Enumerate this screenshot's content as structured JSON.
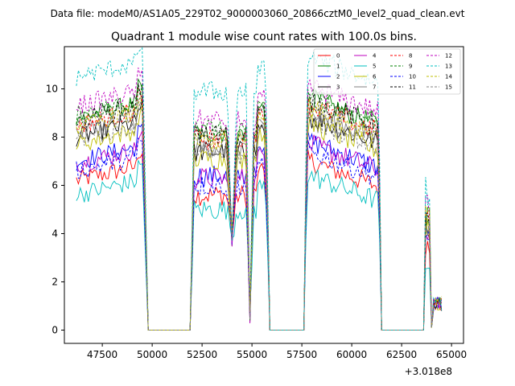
{
  "chart_data": {
    "type": "line",
    "suptitle": "Data file: modeM0/AS1A05_229T02_9000003060_20866cztM0_level2_quad_clean.evt",
    "title": "Quadrant 1 module wise count rates with 100.0s bins.",
    "xlabel": "",
    "ylabel": "",
    "x_offset_label": "+3.018e8",
    "xlim": [
      45600,
      65600
    ],
    "ylim": [
      -0.55,
      11.75
    ],
    "xticks": [
      47500,
      50000,
      52500,
      55000,
      57500,
      60000,
      62500,
      65000
    ],
    "xtick_labels": [
      "47500",
      "50000",
      "52500",
      "55000",
      "57500",
      "60000",
      "62500",
      "65000"
    ],
    "yticks": [
      0,
      2,
      4,
      6,
      8,
      10
    ],
    "ytick_labels": [
      "0",
      "2",
      "4",
      "6",
      "8",
      "10"
    ],
    "legend_location": "upper right",
    "segments": [
      {
        "x0": 46200,
        "x1": 49800,
        "pattern": "flat_rise"
      },
      {
        "x0": 49800,
        "x1": 51800,
        "pattern": "zero"
      },
      {
        "x0": 51900,
        "x1": 55900,
        "pattern": "dips"
      },
      {
        "x0": 55900,
        "x1": 57600,
        "pattern": "zero"
      },
      {
        "x0": 57600,
        "x1": 61500,
        "pattern": "drift"
      },
      {
        "x0": 61500,
        "x1": 63600,
        "pattern": "zero"
      },
      {
        "x0": 63600,
        "x1": 64500,
        "pattern": "tail"
      }
    ],
    "series": [
      {
        "name": "0",
        "color": "#ff0000",
        "dash": "solid",
        "level": 6.2
      },
      {
        "name": "1",
        "color": "#008000",
        "dash": "solid",
        "level": 8.8
      },
      {
        "name": "2",
        "color": "#0000ff",
        "dash": "solid",
        "level": 7.0
      },
      {
        "name": "3",
        "color": "#000000",
        "dash": "solid",
        "level": 8.0
      },
      {
        "name": "4",
        "color": "#bf00bf",
        "dash": "solid",
        "level": 6.9
      },
      {
        "name": "5",
        "color": "#00bfbf",
        "dash": "solid",
        "level": 5.6
      },
      {
        "name": "6",
        "color": "#bfbf00",
        "dash": "solid",
        "level": 7.7
      },
      {
        "name": "7",
        "color": "#808080",
        "dash": "solid",
        "level": 8.2
      },
      {
        "name": "8",
        "color": "#ff0000",
        "dash": "dashed",
        "level": 8.5
      },
      {
        "name": "9",
        "color": "#008000",
        "dash": "dashed",
        "level": 8.9
      },
      {
        "name": "10",
        "color": "#0000ff",
        "dash": "dashed",
        "level": 6.6
      },
      {
        "name": "11",
        "color": "#000000",
        "dash": "dashed",
        "level": 8.7
      },
      {
        "name": "12",
        "color": "#bf00bf",
        "dash": "dashed",
        "level": 9.3
      },
      {
        "name": "13",
        "color": "#00bfbf",
        "dash": "dashed",
        "level": 10.5
      },
      {
        "name": "14",
        "color": "#bfbf00",
        "dash": "dashed",
        "level": 8.4
      },
      {
        "name": "15",
        "color": "#808080",
        "dash": "dashed",
        "level": 7.9
      }
    ]
  }
}
